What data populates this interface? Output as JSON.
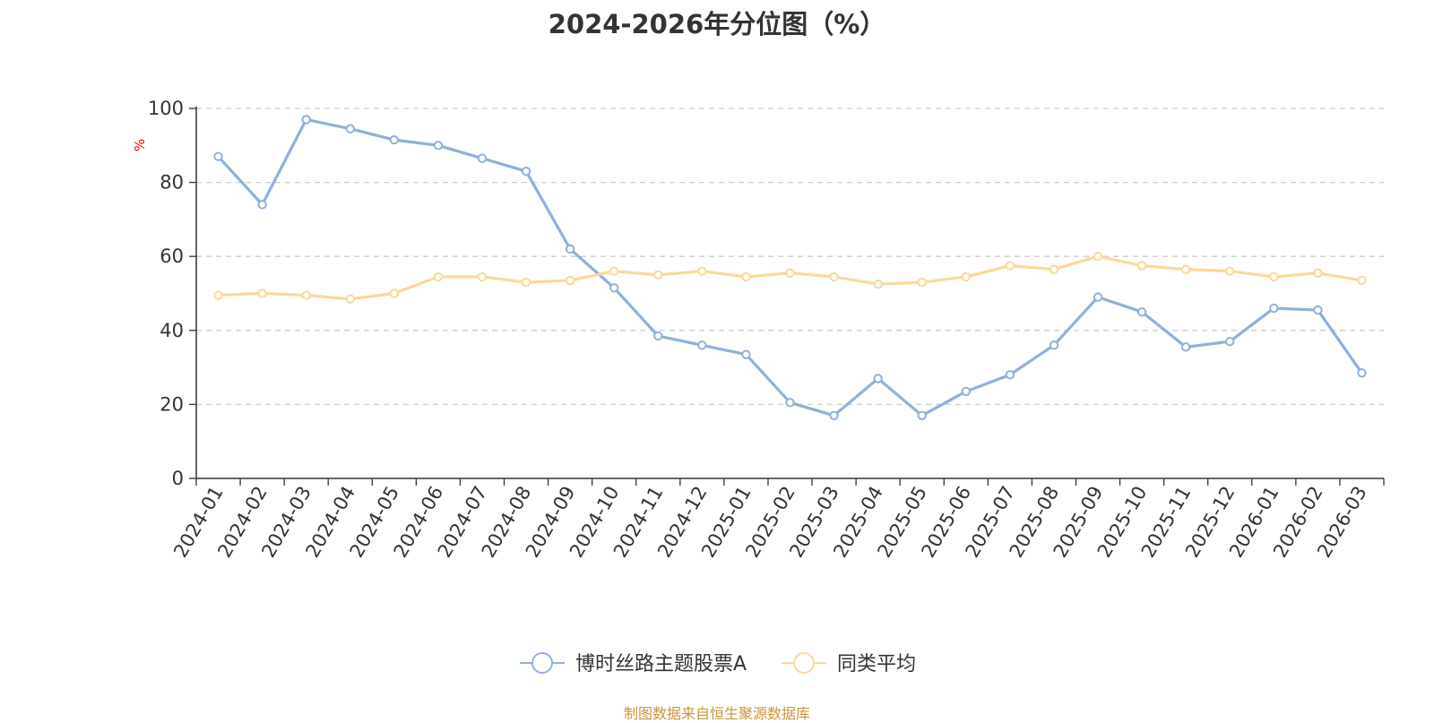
{
  "title": "2024-2026年分位图（%）",
  "source": "制图数据来自恒生聚源数据库",
  "chart_data": {
    "type": "line",
    "title": "2024-2026年分位图（%）",
    "ylabel": "%",
    "ylabel_color": "#ff0000",
    "ylim": [
      0,
      100
    ],
    "yticks": [
      0,
      20,
      40,
      60,
      80,
      100
    ],
    "grid": true,
    "legend_position": "bottom-center",
    "categories": [
      "2024-01",
      "2024-02",
      "2024-03",
      "2024-04",
      "2024-05",
      "2024-06",
      "2024-07",
      "2024-08",
      "2024-09",
      "2024-10",
      "2024-11",
      "2024-12",
      "2025-01",
      "2025-02",
      "2025-03",
      "2025-04",
      "2025-05",
      "2025-06",
      "2025-07",
      "2025-08",
      "2025-09",
      "2025-10",
      "2025-11",
      "2025-12",
      "2026-01",
      "2026-02",
      "2026-03"
    ],
    "series": [
      {
        "name": "博时丝路主题股票A",
        "color": "#8fb0dc",
        "values": [
          87,
          74,
          97,
          94.5,
          91.5,
          90,
          86.5,
          83,
          62,
          51.5,
          38.5,
          36,
          33.5,
          20.5,
          17,
          27,
          17,
          23.5,
          28,
          36,
          49,
          45,
          35.5,
          37,
          46,
          45.5,
          28.5
        ]
      },
      {
        "name": "同类平均",
        "color": "#fbd89a",
        "values": [
          49.5,
          50,
          49.5,
          48.5,
          50,
          54.5,
          54.5,
          53,
          53.5,
          56,
          55,
          56,
          54.5,
          55.5,
          54.5,
          52.5,
          53,
          54.5,
          57.5,
          56.5,
          60,
          57.5,
          56.5,
          56,
          54.5,
          55.5,
          53.5
        ]
      }
    ]
  }
}
